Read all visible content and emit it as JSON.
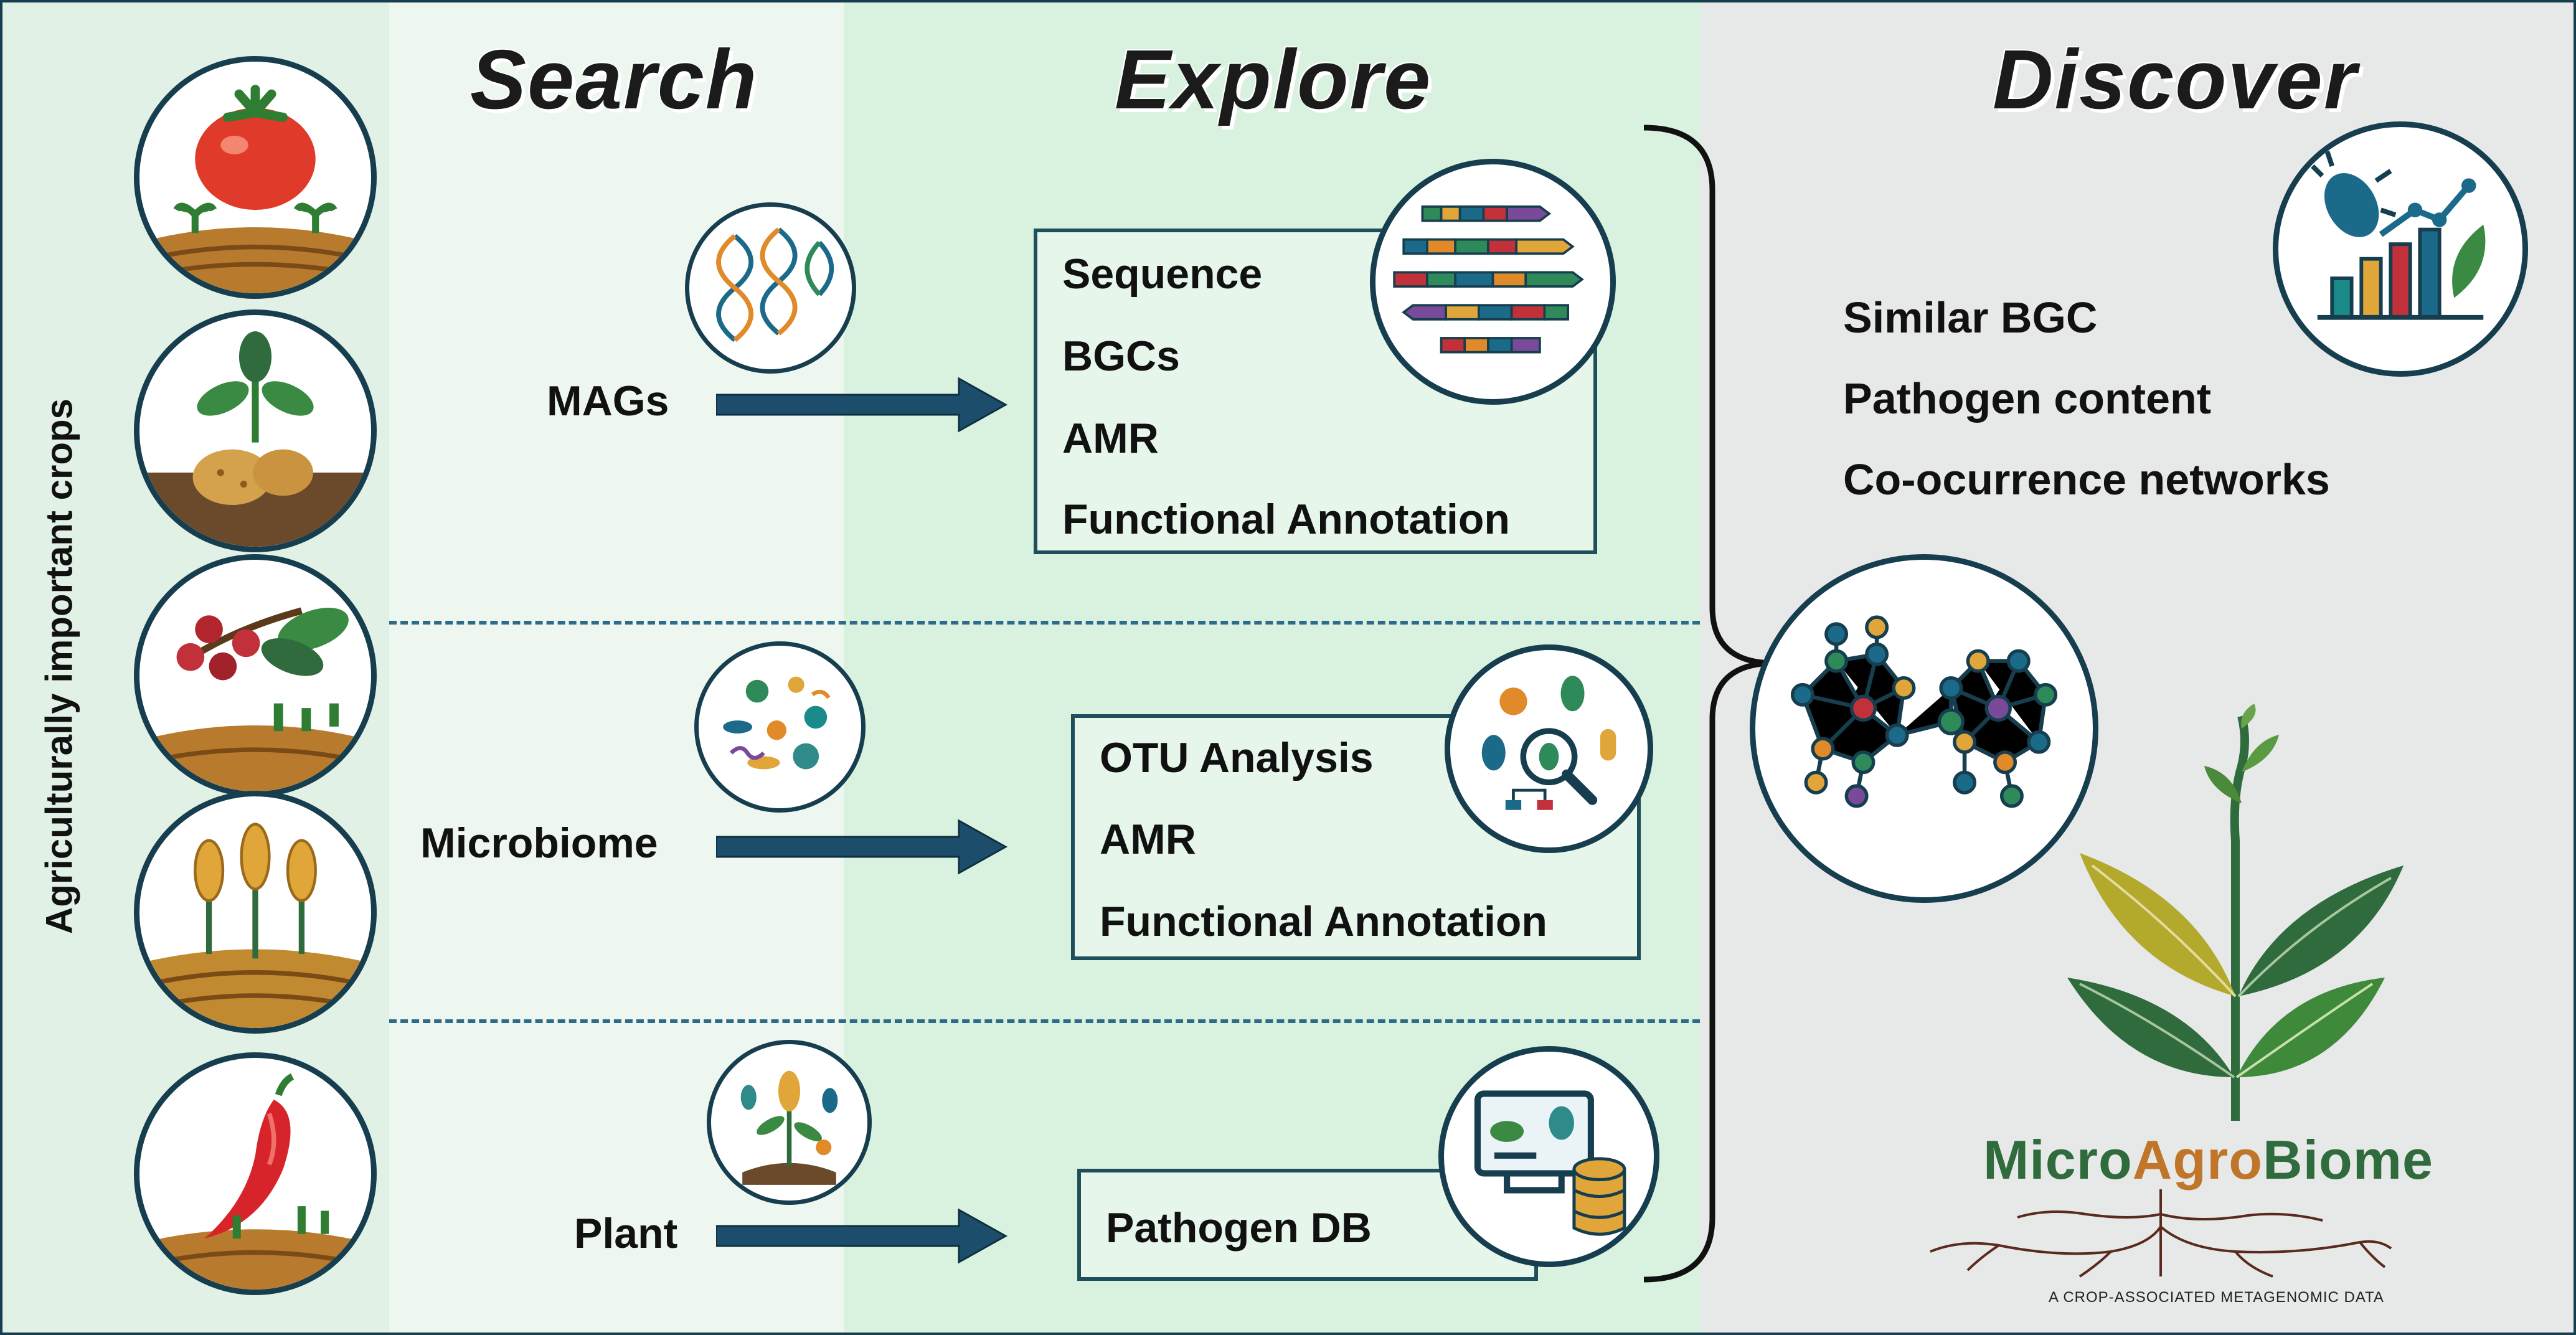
{
  "headings": {
    "search": "Search",
    "explore": "Explore",
    "discover": "Discover"
  },
  "sidebar": {
    "label": "Agriculturally important crops",
    "crops": [
      "tomato-icon",
      "potato-icon",
      "coffee-cherry-icon",
      "wheat-icon",
      "chili-pepper-icon"
    ]
  },
  "rows": [
    {
      "source": "MAGs",
      "items": [
        "Sequence",
        "BGCs",
        "AMR",
        "Functional Annotation"
      ]
    },
    {
      "source": "Microbiome",
      "items": [
        "OTU Analysis",
        "AMR",
        "Functional Annotation"
      ]
    },
    {
      "source": "Plant",
      "items": [
        "Pathogen DB"
      ]
    }
  ],
  "discover": {
    "items": [
      "Similar BGC",
      "Pathogen content",
      "Co-ocurrence networks"
    ]
  },
  "logo": {
    "name_micro": "Micro",
    "name_agro": "Agro",
    "name_biome": "Biome",
    "tagline": "A CROP-ASSOCIATED METAGENOMIC DATA"
  },
  "colors": {
    "dark_blue": "#163e4f",
    "arrow": "#1c4e6b",
    "search_bg": "#eef7ef",
    "explore_bg": "#d9f2df",
    "discover_bg": "#e6e9e8",
    "logo_green": "#2f6b3c",
    "logo_orange": "#c0762a"
  }
}
